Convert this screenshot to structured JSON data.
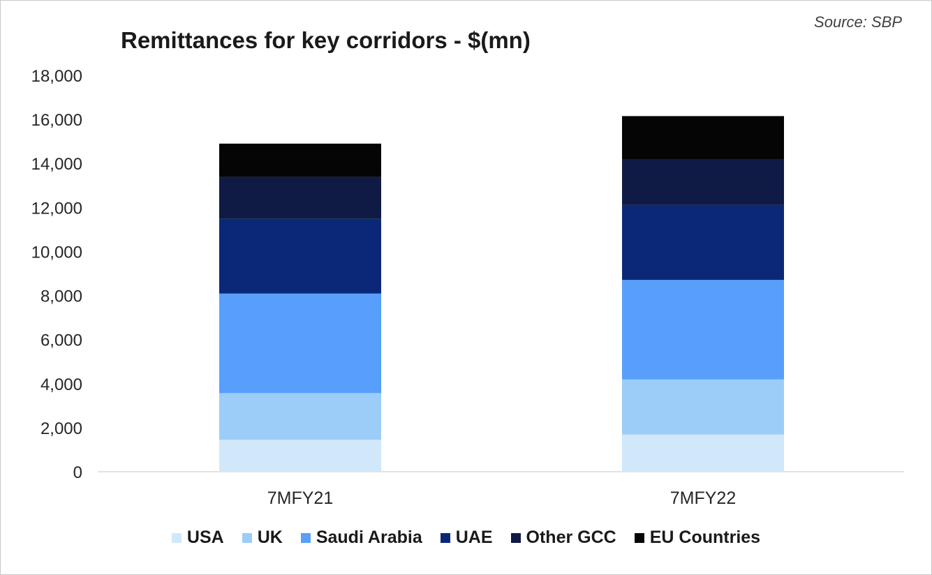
{
  "source_note": "Source: SBP",
  "chart_data": {
    "type": "bar",
    "stacked": true,
    "title": "Remittances for key corridors - $(mn)",
    "xlabel": "",
    "ylabel": "",
    "ylim": [
      0,
      18000
    ],
    "ytick_step": 2000,
    "ytick_labels": [
      "0",
      "2,000",
      "4,000",
      "6,000",
      "8,000",
      "10,000",
      "12,000",
      "14,000",
      "16,000",
      "18,000"
    ],
    "categories": [
      "7MFY21",
      "7MFY22"
    ],
    "grid": false,
    "legend_position": "bottom",
    "series": [
      {
        "name": "USA",
        "values": [
          1450,
          1690
        ],
        "color": "#d1e8fb"
      },
      {
        "name": "UK",
        "values": [
          2120,
          2500
        ],
        "color": "#9ccdf8"
      },
      {
        "name": "Saudi Arabia",
        "values": [
          4520,
          4520
        ],
        "color": "#579ffb"
      },
      {
        "name": "UAE",
        "values": [
          3390,
          3400
        ],
        "color": "#0b2878"
      },
      {
        "name": "Other GCC",
        "values": [
          1900,
          2060
        ],
        "color": "#0f1b45"
      },
      {
        "name": "EU Countries",
        "values": [
          1520,
          1980
        ],
        "color": "#050505"
      }
    ]
  }
}
